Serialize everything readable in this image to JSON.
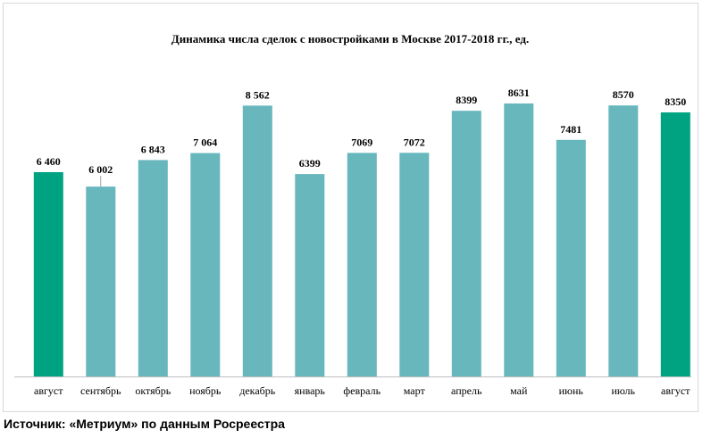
{
  "chart_data": {
    "type": "bar",
    "title": "Динамика числа сделок с новостройками в Москве 2017-2018 гг., ед.",
    "categories": [
      "август",
      "сентябрь",
      "октябрь",
      "ноябрь",
      "декабрь",
      "январь",
      "февраль",
      "март",
      "апрель",
      "май",
      "июнь",
      "июль",
      "август"
    ],
    "values": [
      6460,
      6002,
      6843,
      7064,
      8562,
      6399,
      7069,
      7072,
      8399,
      8631,
      7481,
      8570,
      8350
    ],
    "value_labels": [
      "6 460",
      "6 002",
      "6 843",
      "7 064",
      "8 562",
      "6399",
      "7069",
      "7072",
      "8399",
      "8631",
      "7481",
      "8570",
      "8350"
    ],
    "highlighted": [
      0,
      12
    ],
    "ylim": [
      0,
      9000
    ],
    "xlabel": "",
    "ylabel": "",
    "grid": false,
    "legend": "none",
    "colors": {
      "bar": "#67b7bd",
      "highlight": "#00a381",
      "axis": "#bfbfbf",
      "text": "#000000"
    }
  },
  "source": "Источник: «Метриум» по данным Росреестра"
}
